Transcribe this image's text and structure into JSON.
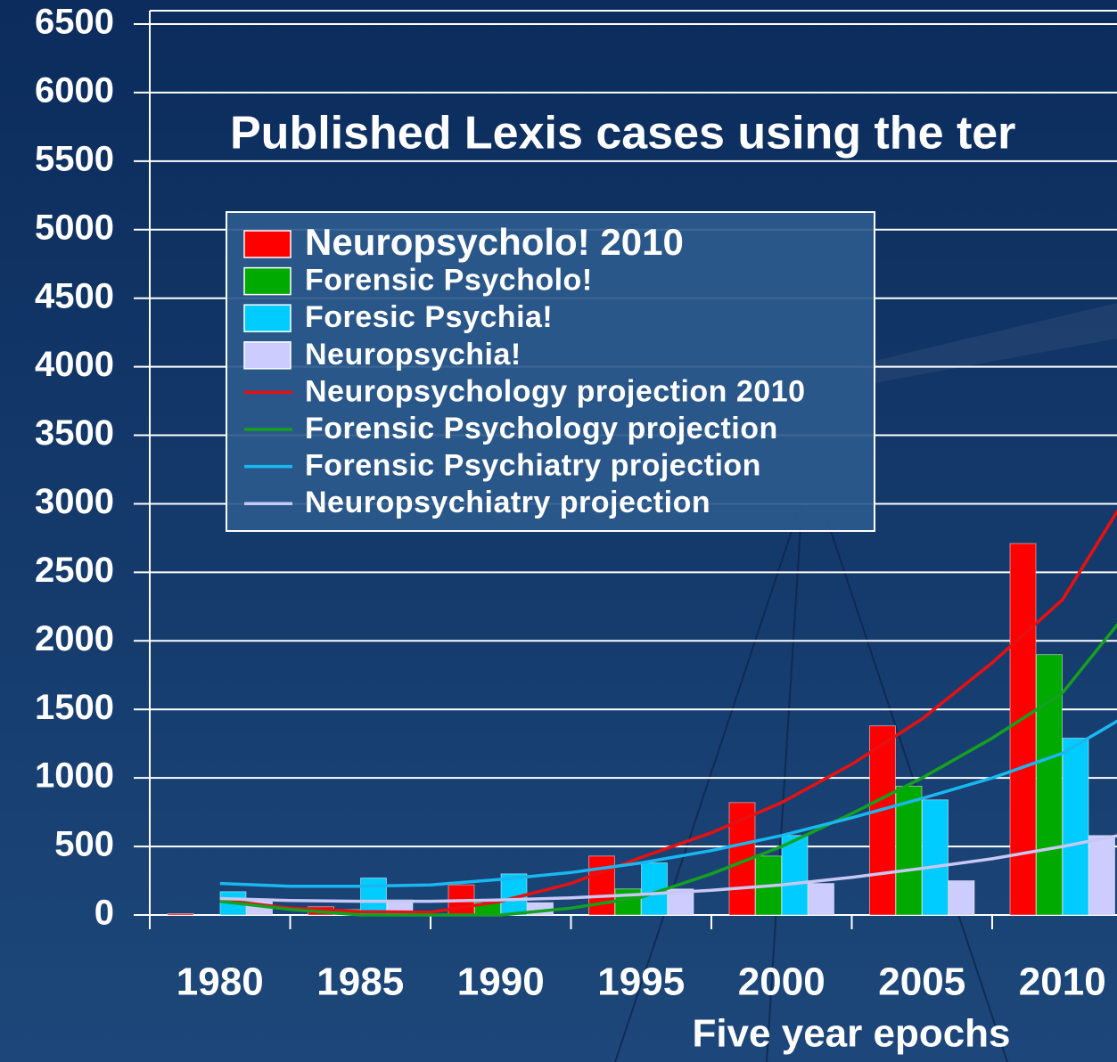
{
  "chart_data": {
    "type": "bar",
    "title": "Published Lexis cases using the ter",
    "x_label": "Five year epochs",
    "categories": [
      "1980",
      "1985",
      "1990",
      "1995",
      "2000",
      "2005",
      "2010"
    ],
    "xlim": [
      1977.5,
      2012.5
    ],
    "ylim": [
      0,
      6500
    ],
    "yticks": [
      0,
      500,
      1000,
      1500,
      2000,
      2500,
      3000,
      3500,
      4000,
      4500,
      5000,
      5500,
      6000,
      6500
    ],
    "grid": true,
    "series": [
      {
        "name": "Neuropsycholo! 2010",
        "type": "bar",
        "color": "#ff0000",
        "values": [
          10,
          60,
          220,
          430,
          820,
          1380,
          2710
        ]
      },
      {
        "name": "Forensic Psycholo!",
        "type": "bar",
        "color": "#00aa00",
        "values": [
          0,
          40,
          90,
          190,
          430,
          940,
          1900
        ]
      },
      {
        "name": "Foresic Psychia!",
        "type": "bar",
        "color": "#00ccff",
        "values": [
          170,
          270,
          300,
          380,
          580,
          840,
          1290
        ]
      },
      {
        "name": "Neuropsychia!",
        "type": "bar",
        "color": "#ccccff",
        "values": [
          100,
          110,
          90,
          190,
          230,
          250,
          580
        ]
      },
      {
        "name": "Neuropsychology projection 2010",
        "type": "line",
        "color": "#e81010",
        "x": [
          1980,
          1982.5,
          1985,
          1987.5,
          1990,
          1992.5,
          1995,
          1997.5,
          2000,
          2002.5,
          2005,
          2007.5,
          2010,
          2012
        ],
        "values": [
          110,
          50,
          25,
          20,
          100,
          230,
          420,
          600,
          820,
          1100,
          1430,
          1840,
          2300,
          2960
        ]
      },
      {
        "name": "Forensic Psychology projection",
        "type": "line",
        "color": "#14a020",
        "x": [
          1980,
          1982.5,
          1985,
          1987.5,
          1990,
          1992.5,
          1995,
          1997.5,
          2000,
          2002.5,
          2005,
          2007.5,
          2010,
          2012
        ],
        "values": [
          100,
          40,
          0,
          0,
          0,
          50,
          130,
          300,
          500,
          740,
          1000,
          1290,
          1620,
          2130
        ]
      },
      {
        "name": "Forensic Psychiatry projection",
        "type": "line",
        "color": "#18b8f0",
        "x": [
          1980,
          1982.5,
          1985,
          1987.5,
          1990,
          1992.5,
          1995,
          1997.5,
          2000,
          2002.5,
          2005,
          2007.5,
          2010,
          2012
        ],
        "values": [
          230,
          210,
          210,
          220,
          260,
          310,
          380,
          470,
          580,
          710,
          850,
          1000,
          1180,
          1420
        ]
      },
      {
        "name": "Neuropsychiatry projection",
        "type": "line",
        "color": "#c8c8f4",
        "x": [
          1980,
          1982.5,
          1985,
          1987.5,
          1990,
          1992.5,
          1995,
          1997.5,
          2000,
          2002.5,
          2005,
          2007.5,
          2010,
          2012
        ],
        "values": [
          120,
          105,
          100,
          100,
          110,
          125,
          150,
          180,
          220,
          275,
          340,
          410,
          500,
          580
        ]
      }
    ]
  }
}
